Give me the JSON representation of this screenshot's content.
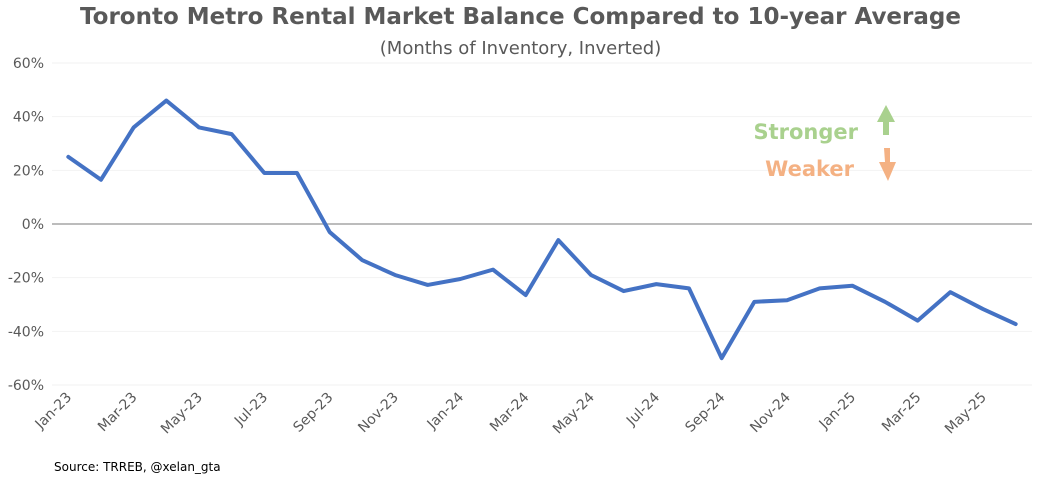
{
  "chart_data": {
    "type": "line",
    "title": "Toronto Metro Rental Market Balance Compared to 10-year Average",
    "subtitle": "(Months of Inventory, Inverted)",
    "source": "Source: TRREB, @xelan_gta",
    "ylim": [
      -60,
      60
    ],
    "yticks": [
      "60%",
      "40%",
      "20%",
      "0%",
      "-20%",
      "-40%",
      "-60%"
    ],
    "ytick_values": [
      60,
      40,
      20,
      0,
      -20,
      -40,
      -60
    ],
    "grid": true,
    "categories": [
      "Jan-23",
      "Feb-23",
      "Mar-23",
      "Apr-23",
      "May-23",
      "Jun-23",
      "Jul-23",
      "Aug-23",
      "Sep-23",
      "Oct-23",
      "Nov-23",
      "Dec-23",
      "Jan-24",
      "Feb-24",
      "Mar-24",
      "Apr-24",
      "May-24",
      "Jun-24",
      "Jul-24",
      "Aug-24",
      "Sep-24",
      "Oct-24",
      "Nov-24",
      "Dec-24",
      "Jan-25",
      "Feb-25",
      "Mar-25",
      "Apr-25",
      "May-25",
      "Jun-25"
    ],
    "xtick_labels": [
      "Jan-23",
      "Mar-23",
      "May-23",
      "Jul-23",
      "Sep-23",
      "Nov-23",
      "Jan-24",
      "Mar-24",
      "May-24",
      "Jul-24",
      "Sep-24",
      "Nov-24",
      "Jan-25",
      "Mar-25",
      "May-25"
    ],
    "values": [
      25,
      16.5,
      36,
      46,
      36,
      33.5,
      19,
      19,
      -3,
      -13.5,
      -19,
      -22.7,
      -20.5,
      -17,
      -26.5,
      -6,
      -19,
      -25,
      -22.4,
      -24,
      -50,
      -29,
      -28.4,
      -24,
      -23,
      -29,
      -36,
      -25.4,
      -31.7,
      -37.3
    ],
    "line_color": "#4472C4",
    "annotations": [
      {
        "text": "Stronger",
        "color": "#A9D18E",
        "arrow": "up"
      },
      {
        "text": "Weaker",
        "color": "#F4B183",
        "arrow": "down"
      }
    ]
  }
}
